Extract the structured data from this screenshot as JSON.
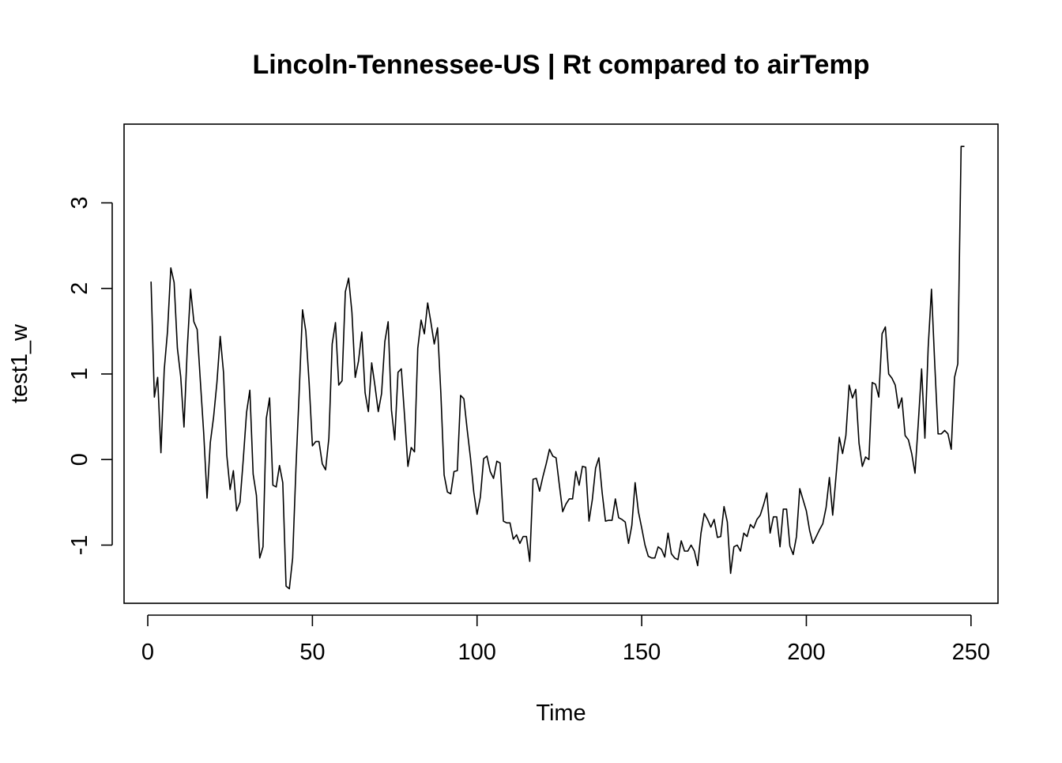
{
  "chart_data": {
    "type": "line",
    "title": "Lincoln-Tennessee-US | Rt compared to airTemp",
    "xlabel": "Time",
    "ylabel": "test1_w",
    "xlim": [
      -7.2,
      258.2
    ],
    "ylim": [
      -1.68,
      3.92
    ],
    "x_ticks": [
      0,
      50,
      100,
      150,
      200,
      250
    ],
    "y_ticks": [
      -1,
      0,
      1,
      2,
      3
    ],
    "x_tick_labels": [
      "0",
      "50",
      "100",
      "150",
      "200",
      "250"
    ],
    "y_tick_labels": [
      "-1",
      "0",
      "1",
      "2",
      "3"
    ],
    "grid": false,
    "legend": "none",
    "line_color": "#000000",
    "series": [
      {
        "x_start": 1,
        "x_step": 1,
        "values": [
          2.08,
          0.73,
          0.96,
          0.08,
          1.05,
          1.5,
          2.24,
          2.07,
          1.3,
          0.97,
          0.38,
          1.3,
          1.99,
          1.61,
          1.52,
          0.9,
          0.3,
          -0.45,
          0.2,
          0.5,
          0.9,
          1.44,
          1.02,
          0.05,
          -0.35,
          -0.13,
          -0.6,
          -0.5,
          0.0,
          0.55,
          0.81,
          -0.17,
          -0.42,
          -1.15,
          -1.02,
          0.48,
          0.72,
          -0.3,
          -0.32,
          -0.07,
          -0.27,
          -1.48,
          -1.51,
          -1.15,
          -0.1,
          0.8,
          1.75,
          1.5,
          0.9,
          0.16,
          0.21,
          0.21,
          -0.05,
          -0.12,
          0.25,
          1.35,
          1.6,
          0.87,
          0.92,
          1.96,
          2.12,
          1.72,
          0.96,
          1.15,
          1.49,
          0.78,
          0.56,
          1.13,
          0.86,
          0.56,
          0.77,
          1.38,
          1.61,
          0.58,
          0.23,
          1.02,
          1.06,
          0.5,
          -0.08,
          0.14,
          0.09,
          1.3,
          1.63,
          1.47,
          1.83,
          1.6,
          1.35,
          1.54,
          0.78,
          -0.18,
          -0.38,
          -0.4,
          -0.14,
          -0.13,
          0.75,
          0.71,
          0.35,
          0.02,
          -0.38,
          -0.64,
          -0.44,
          0.01,
          0.04,
          -0.14,
          -0.22,
          -0.02,
          -0.04,
          -0.72,
          -0.74,
          -0.74,
          -0.93,
          -0.88,
          -0.98,
          -0.9,
          -0.9,
          -1.19,
          -0.23,
          -0.22,
          -0.37,
          -0.2,
          -0.05,
          0.12,
          0.04,
          0.02,
          -0.3,
          -0.61,
          -0.52,
          -0.46,
          -0.46,
          -0.14,
          -0.3,
          -0.08,
          -0.09,
          -0.72,
          -0.47,
          -0.1,
          0.02,
          -0.39,
          -0.72,
          -0.71,
          -0.71,
          -0.46,
          -0.68,
          -0.7,
          -0.73,
          -0.98,
          -0.77,
          -0.27,
          -0.61,
          -0.8,
          -1.0,
          -1.13,
          -1.15,
          -1.15,
          -1.02,
          -1.05,
          -1.14,
          -0.86,
          -1.1,
          -1.15,
          -1.17,
          -0.95,
          -1.07,
          -1.07,
          -1.0,
          -1.07,
          -1.24,
          -0.86,
          -0.63,
          -0.7,
          -0.79,
          -0.7,
          -0.91,
          -0.9,
          -0.55,
          -0.73,
          -1.33,
          -1.02,
          -1.0,
          -1.07,
          -0.86,
          -0.9,
          -0.76,
          -0.8,
          -0.7,
          -0.65,
          -0.53,
          -0.39,
          -0.86,
          -0.67,
          -0.67,
          -1.02,
          -0.58,
          -0.58,
          -1.01,
          -1.11,
          -0.9,
          -0.34,
          -0.47,
          -0.6,
          -0.83,
          -0.98,
          -0.9,
          -0.82,
          -0.75,
          -0.56,
          -0.21,
          -0.65,
          -0.2,
          0.26,
          0.07,
          0.28,
          0.87,
          0.72,
          0.82,
          0.19,
          -0.08,
          0.03,
          0.0,
          0.9,
          0.88,
          0.73,
          1.47,
          1.55,
          1.0,
          0.95,
          0.87,
          0.6,
          0.72,
          0.28,
          0.23,
          0.07,
          -0.16,
          0.43,
          1.06,
          0.25,
          1.31,
          1.99,
          1.11,
          0.3,
          0.3,
          0.34,
          0.3,
          0.12,
          0.96,
          1.12,
          3.66,
          3.66
        ]
      }
    ]
  }
}
